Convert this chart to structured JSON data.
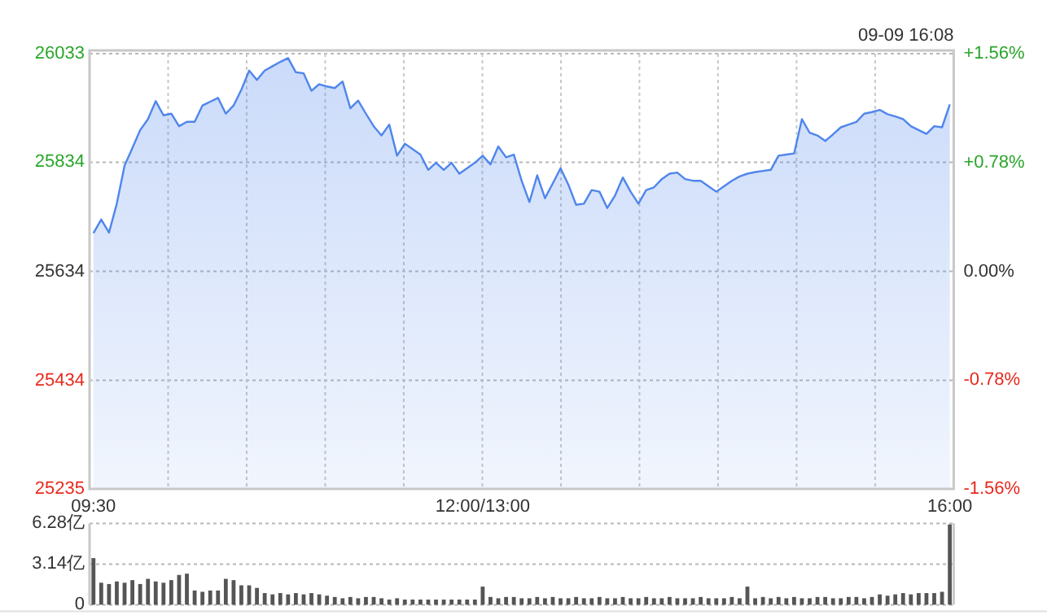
{
  "chart_data": [
    {
      "type": "area",
      "color": "#4f86ec",
      "annotations": [
        "09-09 16:08"
      ],
      "grid": true,
      "categories": [
        "09:30",
        null,
        null,
        null,
        null,
        null,
        null,
        null,
        null,
        null,
        null,
        null,
        null,
        null,
        null,
        null,
        null,
        null,
        null,
        null,
        null,
        null,
        null,
        null,
        null,
        null,
        null,
        null,
        null,
        null,
        null,
        null,
        null,
        null,
        null,
        null,
        null,
        null,
        null,
        null,
        null,
        null,
        null,
        null,
        null,
        null,
        null,
        null,
        null,
        null,
        "12:00/13:00",
        null,
        null,
        null,
        null,
        null,
        null,
        null,
        null,
        null,
        null,
        null,
        null,
        null,
        null,
        null,
        null,
        null,
        null,
        null,
        null,
        null,
        null,
        null,
        null,
        null,
        null,
        null,
        null,
        null,
        null,
        null,
        null,
        null,
        null,
        null,
        null,
        null,
        null,
        null,
        null,
        null,
        null,
        null,
        null,
        null,
        null,
        null,
        null,
        null,
        null,
        null,
        null,
        null,
        null,
        null,
        null,
        null,
        null,
        null,
        "16:00"
      ],
      "values": [
        25704,
        25729,
        25705,
        25758,
        25828,
        25860,
        25893,
        25913,
        25946,
        25920,
        25923,
        25900,
        25908,
        25908,
        25938,
        25945,
        25952,
        25923,
        25938,
        25967,
        26002,
        25985,
        26002,
        26010,
        26018,
        26025,
        25999,
        25997,
        25965,
        25977,
        25973,
        25970,
        25982,
        25933,
        25947,
        25923,
        25900,
        25883,
        25903,
        25846,
        25868,
        25858,
        25848,
        25820,
        25833,
        25820,
        25833,
        25813,
        25823,
        25833,
        25846,
        25830,
        25863,
        25843,
        25848,
        25800,
        25761,
        25810,
        25768,
        25795,
        25823,
        25793,
        25756,
        25758,
        25783,
        25780,
        25750,
        25773,
        25806,
        25780,
        25758,
        25783,
        25788,
        25803,
        25813,
        25815,
        25803,
        25800,
        25800,
        25790,
        25780,
        25790,
        25800,
        25808,
        25813,
        25816,
        25818,
        25820,
        25846,
        25848,
        25850,
        25913,
        25888,
        25883,
        25873,
        25885,
        25898,
        25903,
        25908,
        25923,
        25926,
        25930,
        25922,
        25918,
        25913,
        25900,
        25893,
        25886,
        25900,
        25898,
        25940
      ],
      "ylim": [
        25235,
        26033
      ],
      "yticks": [
        25235,
        25434,
        25634,
        25834,
        26033
      ],
      "y2lim": [
        -1.56,
        1.56
      ],
      "y2ticks": [
        {
          "value": -1.56,
          "label": "-1.56%"
        },
        {
          "value": -0.78,
          "label": "-0.78%"
        },
        {
          "value": 0,
          "label": "0.00%"
        },
        {
          "value": 0.78,
          "label": "+0.78%"
        },
        {
          "value": 1.56,
          "label": "+1.56%"
        }
      ]
    },
    {
      "type": "bar",
      "color": "#555555",
      "grid": "y",
      "tick_labels": "y",
      "categories": [
        null,
        null,
        null,
        null,
        null,
        null,
        null,
        null,
        null,
        null,
        null,
        null,
        null,
        null,
        null,
        null,
        null,
        null,
        null,
        null,
        null,
        null,
        null,
        null,
        null,
        null,
        null,
        null,
        null,
        null,
        null,
        null,
        null,
        null,
        null,
        null,
        null,
        null,
        null,
        null,
        null,
        null,
        null,
        null,
        null,
        null,
        null,
        null,
        null,
        null,
        null,
        null,
        null,
        null,
        null,
        null,
        null,
        null,
        null,
        null,
        null,
        null,
        null,
        null,
        null,
        null,
        null,
        null,
        null,
        null,
        null,
        null,
        null,
        null,
        null,
        null,
        null,
        null,
        null,
        null,
        null,
        null,
        null,
        null,
        null,
        null,
        null,
        null,
        null,
        null,
        null,
        null,
        null,
        null,
        null,
        null,
        null,
        null,
        null,
        null,
        null,
        null,
        null,
        null,
        null,
        null,
        null,
        null,
        null,
        null,
        null
      ],
      "values": [
        3.6,
        1.7,
        1.6,
        1.8,
        1.7,
        1.9,
        1.6,
        2.0,
        1.8,
        1.7,
        1.9,
        2.3,
        2.4,
        1.1,
        1.0,
        1.1,
        1.1,
        2.0,
        1.9,
        1.5,
        1.5,
        1.3,
        0.9,
        0.8,
        0.9,
        0.8,
        0.9,
        0.8,
        0.9,
        0.8,
        0.7,
        0.6,
        0.5,
        0.6,
        0.5,
        0.6,
        0.6,
        0.5,
        0.4,
        0.5,
        0.4,
        0.4,
        0.4,
        0.4,
        0.4,
        0.4,
        0.4,
        0.4,
        0.4,
        0.4,
        1.4,
        0.6,
        0.5,
        0.6,
        0.6,
        0.5,
        0.5,
        0.6,
        0.5,
        0.6,
        0.5,
        0.5,
        0.6,
        0.5,
        0.5,
        0.6,
        0.5,
        0.5,
        0.6,
        0.5,
        0.5,
        0.6,
        0.5,
        0.5,
        0.6,
        0.5,
        0.5,
        0.5,
        0.6,
        0.5,
        0.5,
        0.5,
        0.6,
        0.5,
        1.4,
        0.5,
        0.6,
        0.5,
        0.6,
        0.5,
        0.6,
        0.5,
        0.5,
        0.6,
        0.6,
        0.5,
        0.5,
        0.6,
        0.6,
        0.5,
        0.6,
        0.8,
        0.7,
        0.8,
        0.9,
        0.8,
        0.9,
        0.9,
        0.9,
        1.0,
        6.2
      ],
      "ylim": [
        0,
        6.28
      ],
      "yticks": [
        0,
        {
          "value": 3.14,
          "label": "3.14亿"
        },
        {
          "value": 6.28,
          "label": "6.28亿"
        }
      ]
    }
  ]
}
